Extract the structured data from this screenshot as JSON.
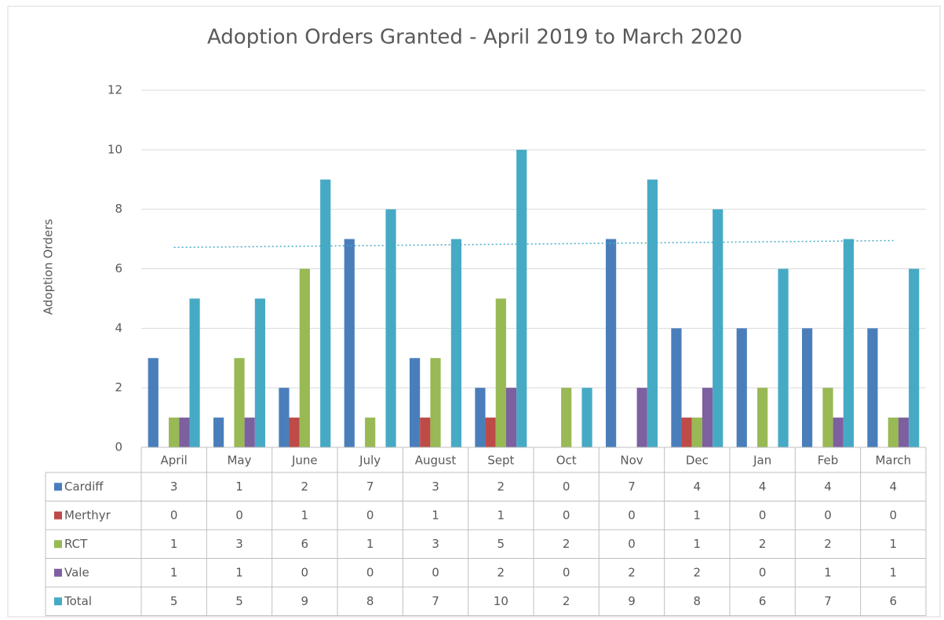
{
  "chart_data": {
    "type": "bar",
    "title": "Adoption Orders Granted - April 2019 to March 2020",
    "y_label": "Adoption Orders",
    "categories": [
      "April",
      "May",
      "June",
      "July",
      "August",
      "Sept",
      "Oct",
      "Nov",
      "Dec",
      "Jan",
      "Feb",
      "March"
    ],
    "series": [
      {
        "name": "Cardiff",
        "color": "#4a7ebb",
        "values": [
          3,
          1,
          2,
          7,
          3,
          2,
          0,
          7,
          4,
          4,
          4,
          4
        ]
      },
      {
        "name": "Merthyr",
        "color": "#be4b48",
        "values": [
          0,
          0,
          1,
          0,
          1,
          1,
          0,
          0,
          1,
          0,
          0,
          0
        ]
      },
      {
        "name": "RCT",
        "color": "#98b954",
        "values": [
          1,
          3,
          6,
          1,
          3,
          5,
          2,
          0,
          1,
          2,
          2,
          1
        ]
      },
      {
        "name": "Vale",
        "color": "#7d60a0",
        "values": [
          1,
          1,
          0,
          0,
          0,
          2,
          0,
          2,
          2,
          0,
          1,
          1
        ]
      },
      {
        "name": "Total",
        "color": "#46aac5",
        "values": [
          5,
          5,
          9,
          8,
          7,
          10,
          2,
          9,
          8,
          6,
          7,
          6
        ],
        "trendline": "linear"
      }
    ],
    "ylim": [
      0,
      12
    ],
    "yticks": [
      0,
      2,
      4,
      6,
      8,
      10,
      12
    ],
    "grid": true,
    "data_table": true
  }
}
